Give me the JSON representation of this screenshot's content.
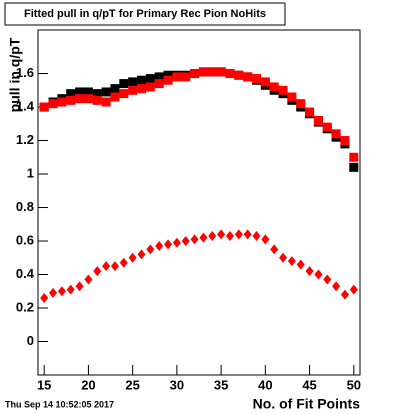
{
  "chart_data": {
    "type": "scatter",
    "title": "Fitted pull in q/pT for Primary Rec Pion NoHits",
    "y_label": "pull in q/pT",
    "x_label": "No. of Fit Points",
    "timestamp": "Thu Sep 14 10:52:05 2017",
    "x": [
      15,
      16,
      17,
      18,
      19,
      20,
      21,
      22,
      23,
      24,
      25,
      26,
      27,
      28,
      29,
      30,
      31,
      32,
      33,
      34,
      35,
      36,
      37,
      38,
      39,
      40,
      41,
      42,
      43,
      44,
      45,
      46,
      47,
      48,
      49,
      50
    ],
    "series": [
      {
        "color": "#000000",
        "marker": "square",
        "values": [
          1.4,
          1.43,
          1.45,
          1.48,
          1.49,
          1.49,
          1.48,
          1.49,
          1.51,
          1.54,
          1.55,
          1.56,
          1.57,
          1.58,
          1.59,
          1.59,
          1.59,
          1.6,
          1.61,
          1.61,
          1.61,
          1.6,
          1.59,
          1.58,
          1.56,
          1.53,
          1.5,
          1.48,
          1.44,
          1.4,
          1.36,
          1.31,
          1.27,
          1.22,
          1.18,
          1.04
        ]
      },
      {
        "color": "#ff0000",
        "marker": "square",
        "values": [
          1.4,
          1.42,
          1.43,
          1.44,
          1.45,
          1.45,
          1.44,
          1.43,
          1.46,
          1.48,
          1.5,
          1.51,
          1.52,
          1.54,
          1.56,
          1.58,
          1.58,
          1.6,
          1.61,
          1.61,
          1.61,
          1.6,
          1.59,
          1.58,
          1.57,
          1.55,
          1.52,
          1.5,
          1.46,
          1.42,
          1.37,
          1.32,
          1.28,
          1.24,
          1.2,
          1.1
        ]
      },
      {
        "color": "#ff0000",
        "marker": "diamond",
        "values": [
          0.26,
          0.29,
          0.3,
          0.31,
          0.33,
          0.37,
          0.42,
          0.45,
          0.45,
          0.47,
          0.5,
          0.52,
          0.55,
          0.57,
          0.58,
          0.59,
          0.6,
          0.61,
          0.62,
          0.63,
          0.64,
          0.63,
          0.64,
          0.64,
          0.63,
          0.61,
          0.55,
          0.5,
          0.48,
          0.46,
          0.42,
          0.4,
          0.37,
          0.33,
          0.28,
          0.31
        ]
      }
    ],
    "xlim": [
      14.3,
      50.7
    ],
    "xticks": [
      15,
      20,
      25,
      30,
      35,
      40,
      45,
      50
    ],
    "ylim": [
      -0.2,
      1.86
    ],
    "yticks": [
      0,
      0.2,
      0.4,
      0.6,
      0.8,
      1,
      1.2,
      1.4,
      1.6
    ]
  }
}
